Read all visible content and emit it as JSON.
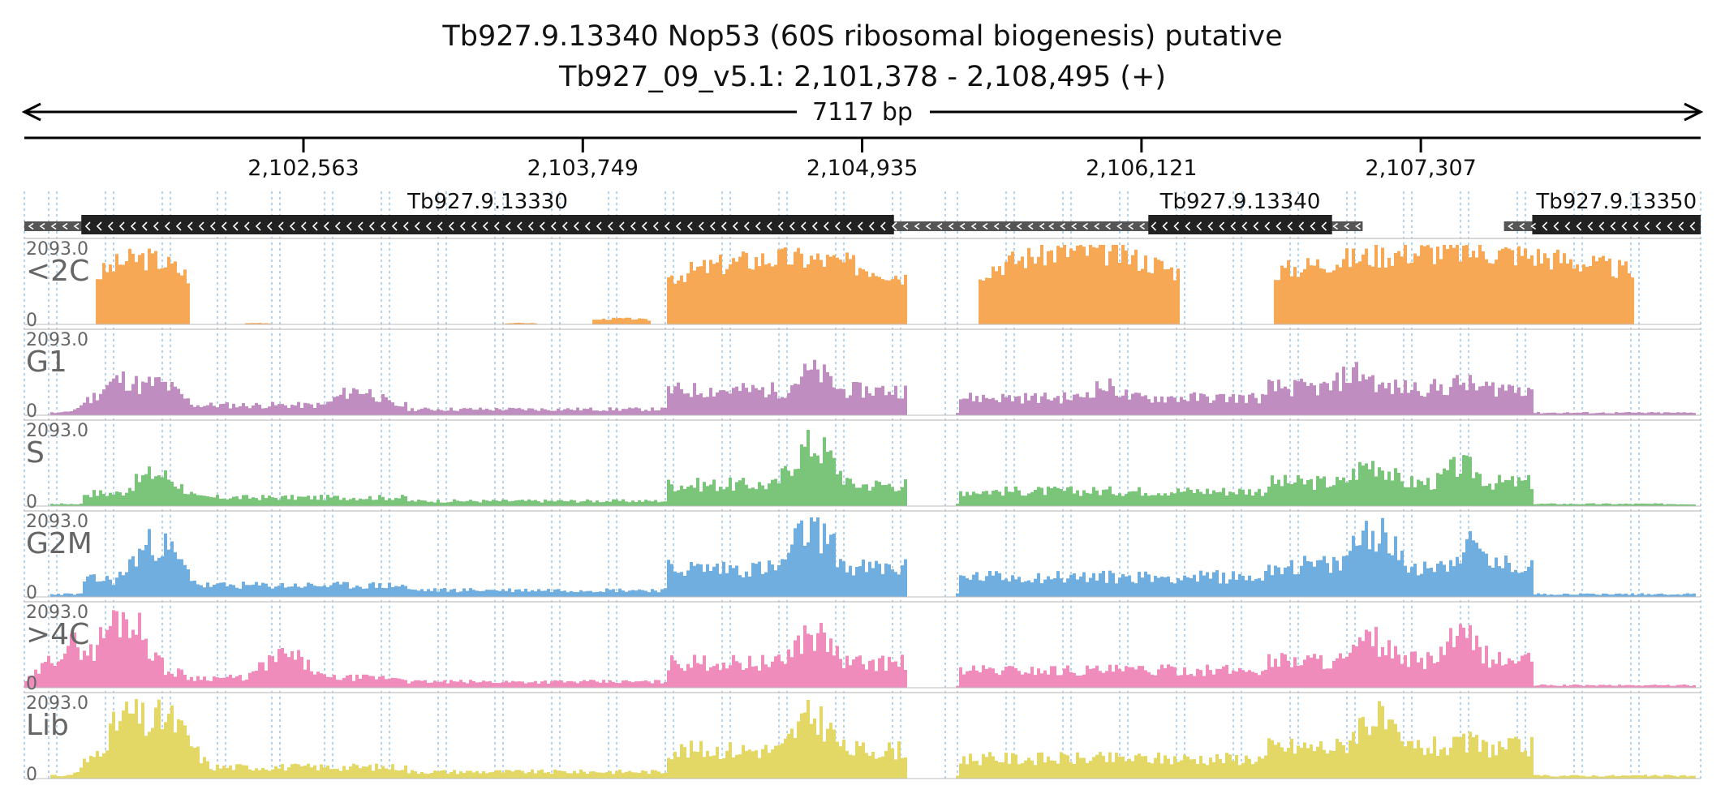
{
  "header": {
    "gene_line": "Tb927.9.13340  Nop53 (60S ribosomal biogenesis)  putative",
    "locus_line": "Tb927_09_v5.1: 2,101,378 - 2,108,495 (+)",
    "span_label": "7117 bp"
  },
  "region": {
    "start": 2101378,
    "end": 2108495
  },
  "ruler": {
    "ticks": [
      {
        "pos": 2102563,
        "label": "2,102,563"
      },
      {
        "pos": 2103749,
        "label": "2,103,749"
      },
      {
        "pos": 2104935,
        "label": "2,104,935"
      },
      {
        "pos": 2106121,
        "label": "2,106,121"
      },
      {
        "pos": 2107307,
        "label": "2,107,307"
      }
    ]
  },
  "genes": [
    {
      "name": "Tb927.9.13330",
      "utr_start": 2101378,
      "utr_end": 2105740,
      "cds_start": 2101620,
      "cds_end": 2105070,
      "strand": "-"
    },
    {
      "name": "Tb927.9.13340",
      "utr_start": 2105710,
      "utr_end": 2107060,
      "cds_start": 2106150,
      "cds_end": 2106930,
      "strand": "-"
    },
    {
      "name": "Tb927.9.13350",
      "utr_start": 2107660,
      "utr_end": 2108495,
      "cds_start": 2107780,
      "cds_end": 2108495,
      "strand": "-"
    }
  ],
  "tracks": [
    {
      "label": "<2C",
      "max_label": "2093.0",
      "min_label": "0",
      "color": "#f7a855",
      "profile": "cell2c"
    },
    {
      "label": "G1",
      "max_label": "2093.0",
      "min_label": "0",
      "color": "#c08dc0",
      "profile": "g1"
    },
    {
      "label": "S",
      "max_label": "2093.0",
      "min_label": "0",
      "color": "#7ac57a",
      "profile": "s"
    },
    {
      "label": "G2M",
      "max_label": "2093.0",
      "min_label": "0",
      "color": "#70aee0",
      "profile": "g2m"
    },
    {
      "label": ">4C",
      "max_label": "2093.0",
      "min_label": "0",
      "color": "#f08cbc",
      "profile": "c4"
    },
    {
      "label": "Lib",
      "max_label": "2093.0",
      "min_label": "0",
      "color": "#e3d866",
      "profile": "lib"
    }
  ],
  "colors": {
    "gene_utr": "#555555",
    "gene_cds": "#222222",
    "grid": "#9cc3e6",
    "track_label": "#666666",
    "baseline": "#bbbbbb"
  }
}
